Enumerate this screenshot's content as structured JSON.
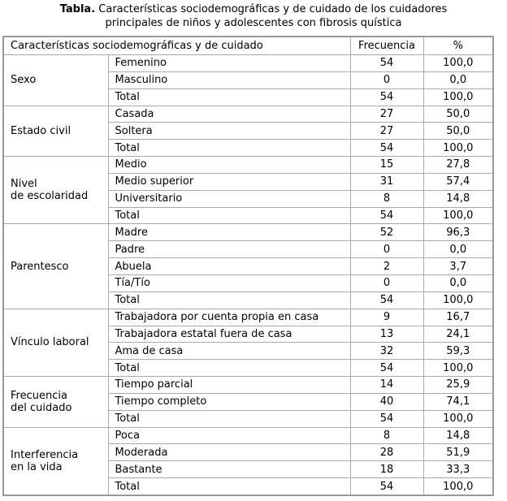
{
  "title": {
    "label": "Tabla.",
    "lines": [
      "Características sociodemográficas y de cuidado de los cuidadores",
      "principales de niños y adolescentes con fibrosis quística"
    ]
  },
  "table": {
    "header": [
      "Características sociodemográficas y de cuidado",
      "Frecuencia",
      "%"
    ],
    "groups": [
      {
        "label": [
          "Sexo"
        ],
        "rows": [
          [
            "Femenino",
            "54",
            "100,0"
          ],
          [
            "Masculino",
            "0",
            "0,0"
          ],
          [
            "Total",
            "54",
            "100,0"
          ]
        ]
      },
      {
        "label": [
          "Estado civil"
        ],
        "rows": [
          [
            "Casada",
            "27",
            "50,0"
          ],
          [
            "Soltera",
            "27",
            "50,0"
          ],
          [
            "Total",
            "54",
            "100,0"
          ]
        ]
      },
      {
        "label": [
          "Nivel",
          "de escolaridad"
        ],
        "rows": [
          [
            "Medio",
            "15",
            "27,8"
          ],
          [
            "Medio superior",
            "31",
            "57,4"
          ],
          [
            "Universitario",
            "8",
            "14,8"
          ],
          [
            "Total",
            "54",
            "100,0"
          ]
        ]
      },
      {
        "label": [
          "Parentesco"
        ],
        "rows": [
          [
            "Madre",
            "52",
            "96,3"
          ],
          [
            "Padre",
            "0",
            "0,0"
          ],
          [
            "Abuela",
            "2",
            "3,7"
          ],
          [
            "Tía/Tío",
            "0",
            "0,0"
          ],
          [
            "Total",
            "54",
            "100,0"
          ]
        ]
      },
      {
        "label": [
          "Vínculo laboral"
        ],
        "rows": [
          [
            "Trabajadora por cuenta propia en casa",
            "9",
            "16,7"
          ],
          [
            "Trabajadora estatal fuera de casa",
            "13",
            "24,1"
          ],
          [
            "Ama de casa",
            "32",
            "59,3"
          ],
          [
            "Total",
            "54",
            "100,0"
          ]
        ]
      },
      {
        "label": [
          "Frecuencia",
          "del cuidado"
        ],
        "rows": [
          [
            "Tiempo parcial",
            "14",
            "25,9"
          ],
          [
            "Tiempo completo",
            "40",
            "74,1"
          ],
          [
            "Total",
            "54",
            "100,0"
          ]
        ]
      },
      {
        "label": [
          "Interferencia",
          "en la vida"
        ],
        "rows": [
          [
            "Poca",
            "8",
            "14,8"
          ],
          [
            "Moderada",
            "28",
            "51,9"
          ],
          [
            "Bastante",
            "18",
            "33,3"
          ],
          [
            "Total",
            "54",
            "100,0"
          ]
        ]
      }
    ]
  }
}
